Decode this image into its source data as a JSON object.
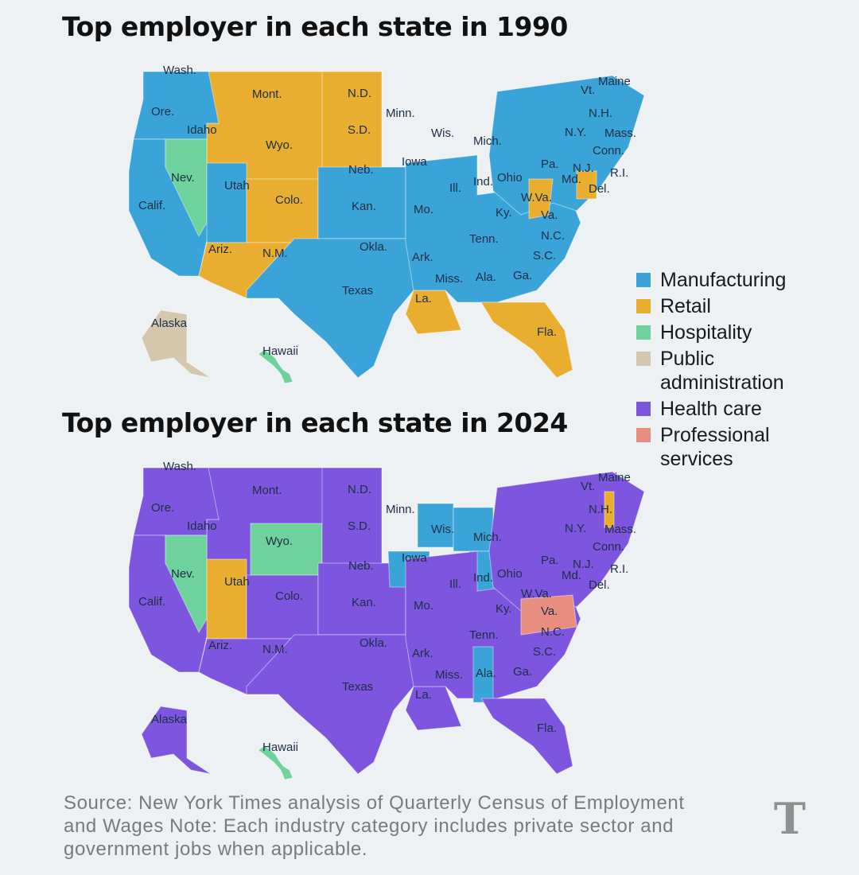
{
  "maps": [
    {
      "title": "Top employer in each state in 1990",
      "regions": {
        "west": "retail",
        "pnw": "manufacturing",
        "california": "manufacturing",
        "nevada": "hospitality",
        "utah": "manufacturing",
        "mountain": "retail",
        "southwest": "retail",
        "north_plains": "retail",
        "central_plains": "manufacturing",
        "midwest_east": "manufacturing",
        "south_central": "manufacturing",
        "louisiana": "retail",
        "southeast": "manufacturing",
        "florida": "retail",
        "northeast": "manufacturing",
        "wv": "retail",
        "md_de": "retail",
        "alaska": "public_administration",
        "hawaii": "hospitality"
      }
    },
    {
      "title": "Top employer in each state in 2024",
      "regions": {
        "west": "health_care",
        "pnw": "health_care",
        "california": "health_care",
        "nevada": "hospitality",
        "utah": "retail",
        "wyoming": "hospitality",
        "mountain": "health_care",
        "southwest": "health_care",
        "north_plains": "health_care",
        "central_plains": "health_care",
        "iowa": "manufacturing",
        "wisconsin": "manufacturing",
        "michigan": "manufacturing",
        "indiana_kentucky": "manufacturing",
        "alabama": "manufacturing",
        "virginia": "professional_services",
        "new_hampshire": "retail",
        "south_central": "health_care",
        "louisiana": "health_care",
        "southeast": "health_care",
        "florida": "health_care",
        "northeast": "health_care",
        "alaska": "health_care",
        "hawaii": "hospitality"
      }
    }
  ],
  "state_labels": [
    "Wash.",
    "Ore.",
    "Calif.",
    "Idaho",
    "Nev.",
    "Utah",
    "Ariz.",
    "Mont.",
    "Wyo.",
    "Colo.",
    "N.M.",
    "N.D.",
    "S.D.",
    "Neb.",
    "Kan.",
    "Okla.",
    "Texas",
    "Minn.",
    "Iowa",
    "Mo.",
    "Ark.",
    "La.",
    "Wis.",
    "Ill.",
    "Mich.",
    "Ind.",
    "Ohio",
    "Ky.",
    "Tenn.",
    "Miss.",
    "Ala.",
    "Ga.",
    "Fla.",
    "S.C.",
    "N.C.",
    "Va.",
    "W.Va.",
    "Pa.",
    "N.Y.",
    "Vt.",
    "N.H.",
    "Maine",
    "Mass.",
    "Conn.",
    "R.I.",
    "N.J.",
    "Md.",
    "Del.",
    "Alaska",
    "Hawaii"
  ],
  "legend": [
    {
      "key": "manufacturing",
      "label": "Manufacturing",
      "color": "#3aa3d8"
    },
    {
      "key": "retail",
      "label": "Retail",
      "color": "#e9ae2f"
    },
    {
      "key": "hospitality",
      "label": "Hospitality",
      "color": "#6fd19b"
    },
    {
      "key": "public_administration",
      "label": "Public administration",
      "color": "#d4c7ae"
    },
    {
      "key": "health_care",
      "label": "Health care",
      "color": "#7d55df"
    },
    {
      "key": "professional_services",
      "label": "Professional services",
      "color": "#e88e80"
    }
  ],
  "source_note": "Source: New York Times analysis of Quarterly Census of Employment and Wages Note: Each industry category includes private sector and government jobs when applicable.",
  "logo_text": "T"
}
